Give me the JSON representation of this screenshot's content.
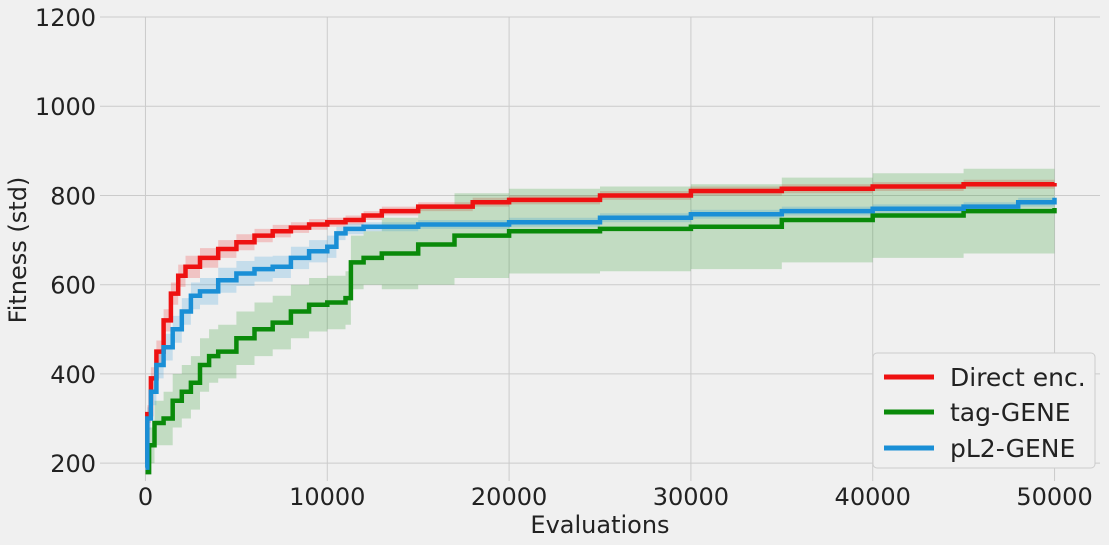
{
  "chart_data": {
    "type": "line",
    "xlabel": "Evaluations",
    "ylabel": "Fitness (std)",
    "xlim": [
      -2500,
      52500
    ],
    "ylim": [
      160,
      1200
    ],
    "xticks": [
      0,
      10000,
      20000,
      30000,
      40000,
      50000
    ],
    "xtick_labels": [
      "0",
      "10000",
      "20000",
      "30000",
      "40000",
      "50000"
    ],
    "yticks": [
      200,
      400,
      600,
      800,
      1000,
      1200
    ],
    "ytick_labels": [
      "200",
      "400",
      "600",
      "800",
      "1000",
      "1200"
    ],
    "grid": true,
    "legend_position": "bottom-right",
    "series": [
      {
        "name": "Direct enc.",
        "color": "#ee1111",
        "x": [
          0,
          100,
          300,
          600,
          1000,
          1400,
          1800,
          2200,
          3000,
          4000,
          5000,
          6000,
          7000,
          8000,
          9000,
          10000,
          11000,
          12000,
          13000,
          15000,
          18000,
          20000,
          25000,
          30000,
          35000,
          40000,
          45000,
          50000
        ],
        "y": [
          200,
          310,
          390,
          450,
          520,
          580,
          620,
          640,
          660,
          680,
          695,
          710,
          720,
          728,
          735,
          740,
          745,
          755,
          765,
          775,
          785,
          790,
          800,
          810,
          815,
          820,
          825,
          828
        ],
        "std": [
          5,
          20,
          25,
          25,
          25,
          25,
          25,
          25,
          22,
          20,
          18,
          15,
          14,
          12,
          12,
          10,
          10,
          10,
          10,
          10,
          10,
          10,
          10,
          10,
          10,
          10,
          10,
          10
        ]
      },
      {
        "name": "tag-GENE",
        "color": "#0a8a0a",
        "x": [
          0,
          200,
          500,
          1000,
          1500,
          2000,
          2500,
          3000,
          3500,
          4000,
          5000,
          6000,
          7000,
          8000,
          9000,
          10000,
          11000,
          11300,
          12000,
          13000,
          15000,
          17000,
          20000,
          25000,
          30000,
          35000,
          40000,
          45000,
          50000
        ],
        "y": [
          180,
          240,
          290,
          300,
          340,
          360,
          380,
          420,
          440,
          450,
          480,
          500,
          515,
          540,
          555,
          560,
          570,
          650,
          660,
          670,
          690,
          710,
          720,
          725,
          730,
          745,
          755,
          765,
          772
        ],
        "std": [
          5,
          40,
          50,
          60,
          60,
          60,
          60,
          60,
          60,
          60,
          60,
          60,
          60,
          60,
          60,
          60,
          60,
          60,
          60,
          80,
          90,
          95,
          95,
          95,
          95,
          95,
          95,
          95,
          95
        ]
      },
      {
        "name": "pL2-GENE",
        "color": "#1a8fd6",
        "x": [
          0,
          100,
          300,
          600,
          1000,
          1500,
          2000,
          2500,
          3000,
          4000,
          5000,
          6000,
          7000,
          8000,
          9000,
          10000,
          10500,
          11000,
          12000,
          15000,
          20000,
          25000,
          30000,
          35000,
          40000,
          45000,
          48000,
          50000
        ],
        "y": [
          190,
          300,
          360,
          420,
          460,
          500,
          540,
          575,
          585,
          610,
          625,
          635,
          640,
          660,
          675,
          685,
          715,
          725,
          730,
          735,
          740,
          750,
          758,
          765,
          770,
          775,
          785,
          795
        ],
        "std": [
          5,
          25,
          30,
          30,
          30,
          30,
          30,
          30,
          30,
          28,
          28,
          28,
          25,
          25,
          25,
          25,
          15,
          12,
          10,
          10,
          10,
          10,
          10,
          10,
          10,
          10,
          10,
          10
        ]
      }
    ]
  }
}
